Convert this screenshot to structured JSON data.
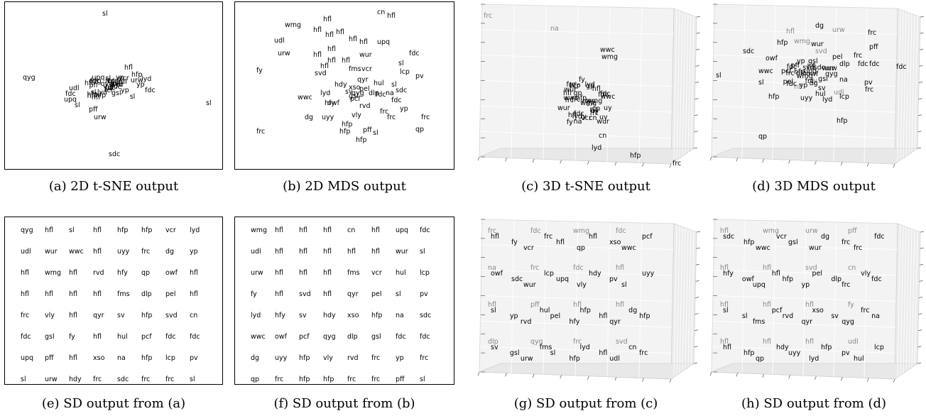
{
  "captions": {
    "a": "(a) 2D t-SNE output",
    "b": "(b) 2D MDS output",
    "c": "(c) 3D t-SNE output",
    "d": "(d) 3D MDS output",
    "e": "(e) SD output from (a)",
    "f": "(f) SD output from (b)",
    "g": "(g) SD output from (c)",
    "h": "(h) SD output from (d)"
  },
  "panel_a_labels": [
    "sl",
    "qyg",
    "hfl",
    "hfp",
    "vcr",
    "lyd",
    "yp",
    "fdc",
    "sl",
    "fdc",
    "upq",
    "sl",
    "pff",
    "urw",
    "sdc",
    "udl",
    "hfl",
    "fcr",
    "gsl"
  ],
  "panel_b_labels": [
    "cn",
    "hfl",
    "wmg",
    "hfl",
    "hfl",
    "hfl",
    "hfl",
    "udl",
    "hfl",
    "hfl",
    "upq",
    "fdc",
    "urw",
    "hfl",
    "hfl",
    "wur",
    "hfl",
    "hfl",
    "hfl",
    "sl",
    "fy",
    "svd",
    "fms",
    "vcr",
    "lcp",
    "hul",
    "qyr",
    "pv",
    "sl",
    "pel",
    "hdy",
    "xso",
    "wwc",
    "lyd",
    "hfy",
    "sv",
    "qyg",
    "dlp",
    "gsl",
    "fdc",
    "na",
    "sdc",
    "owf",
    "pcf",
    "fdc",
    "rvd",
    "yp",
    "dg",
    "uyy",
    "vly",
    "frc",
    "frc",
    "hfp",
    "frc",
    "pff",
    "sl",
    "qp",
    "frc",
    "hfp",
    "hfp"
  ],
  "panel_c_labels": [
    "frc",
    "na",
    "wwc",
    "wmg",
    "fy",
    "vcr",
    "gp",
    "hfl",
    "fdc",
    "wur",
    "uy",
    "cn",
    "lyd",
    "hfp",
    "frc"
  ],
  "panel_d_labels": [
    "dg",
    "urw",
    "hfl",
    "wmg",
    "frc",
    "hfp",
    "wur",
    "pff",
    "sdc",
    "svd",
    "owf",
    "pel",
    "frc",
    "yp",
    "gsl",
    "dlp",
    "fdc",
    "fdc",
    "fdc",
    "wwc",
    "pcf",
    "upq",
    "qyg",
    "na",
    "sl",
    "pv",
    "sl",
    "fy",
    "sv",
    "frc",
    "hfl",
    "hul",
    "udl",
    "hfp",
    "uyy",
    "lyd",
    "lcp",
    "hfp",
    "qp"
  ],
  "grid_e": [
    [
      "qyg",
      "hfl",
      "sl",
      "hfl",
      "hfp",
      "hfp",
      "vcr",
      "lyd"
    ],
    [
      "udl",
      "wur",
      "wwc",
      "hfl",
      "uyy",
      "frc",
      "dg",
      "yp"
    ],
    [
      "hfl",
      "wmg",
      "hfl",
      "rvd",
      "hfy",
      "qp",
      "owf",
      "hfl"
    ],
    [
      "hfl",
      "hfl",
      "hfl",
      "hfl",
      "fms",
      "dlp",
      "pel",
      "hfl"
    ],
    [
      "frc",
      "vly",
      "hfl",
      "qyr",
      "sv",
      "hfp",
      "svd",
      "cn"
    ],
    [
      "fdc",
      "gsl",
      "fy",
      "hfl",
      "hul",
      "pcf",
      "fdc",
      "fdc"
    ],
    [
      "upq",
      "pff",
      "hfl",
      "xso",
      "na",
      "hfp",
      "lcp",
      "pv"
    ],
    [
      "sl",
      "urw",
      "hdy",
      "frc",
      "sdc",
      "frc",
      "frc",
      "sl"
    ]
  ],
  "grid_f": [
    [
      "wmg",
      "hfl",
      "hfl",
      "hfl",
      "cn",
      "hfl",
      "upq",
      "fdc"
    ],
    [
      "udl",
      "hfl",
      "hfl",
      "hfl",
      "hfl",
      "hfl",
      "wur",
      "sl"
    ],
    [
      "urw",
      "hfl",
      "hfl",
      "hfl",
      "fms",
      "vcr",
      "hul",
      "lcp"
    ],
    [
      "fy",
      "hfl",
      "svd",
      "hfl",
      "qyr",
      "pel",
      "sl",
      "pv"
    ],
    [
      "lyd",
      "hfy",
      "sv",
      "hdy",
      "xso",
      "hfp",
      "na",
      "sdc"
    ],
    [
      "wwc",
      "owf",
      "pcf",
      "qyg",
      "dlp",
      "gsl",
      "fdc",
      "fdc"
    ],
    [
      "dg",
      "uyy",
      "hfp",
      "vly",
      "rvd",
      "frc",
      "yp",
      "frc"
    ],
    [
      "qp",
      "frc",
      "hfp",
      "hfp",
      "frc",
      "frc",
      "pff",
      "sl"
    ]
  ],
  "grid_g": {
    "back": [
      [
        "frc",
        "fdc",
        "wmg",
        "fdc"
      ],
      [
        "na",
        "frc",
        "fdc",
        "hfl"
      ],
      [
        "hfl",
        "pff",
        "hfl",
        "hfl"
      ],
      [
        "dlp",
        "qyg",
        "frc",
        "svd"
      ]
    ],
    "front": [
      [
        "hfl",
        "fy",
        "vcr",
        "frc",
        "hfl",
        "qp",
        "hfl",
        "xso",
        "wwc",
        "pcf"
      ],
      [
        "owf",
        "sdc",
        "wur",
        "lcp",
        "upq",
        "vly",
        "hdy",
        "pv",
        "sl",
        "uyy"
      ],
      [
        "sl",
        "yp",
        "rvd",
        "hul",
        "pel",
        "hfy",
        "hfp",
        "hfl",
        "qyr",
        "dg",
        "hfp"
      ],
      [
        "sv",
        "gsl",
        "urw",
        "fms",
        "sl",
        "hfp",
        "lyd",
        "hfl",
        "udl",
        "cn",
        "frc"
      ]
    ]
  },
  "grid_h": {
    "back": [
      [
        "hfl",
        "wmg",
        "urw",
        "pff"
      ],
      [
        "hfl",
        "hfl",
        "svd",
        "cn"
      ],
      [
        "hfl",
        "hfl",
        "hfl",
        "fy"
      ],
      [
        "hfl",
        "hfl",
        "hfl",
        "udl"
      ]
    ],
    "front": [
      [
        "sdc",
        "hfp",
        "wwc",
        "vcr",
        "gsl",
        "wur",
        "dg",
        "frc",
        "frc",
        "fdc"
      ],
      [
        "hfy",
        "owf",
        "upq",
        "hfl",
        "hfp",
        "yp",
        "pel",
        "dlp",
        "frc",
        "vly",
        "fdc"
      ],
      [
        "sl",
        "sl",
        "fms",
        "pcf",
        "rvd",
        "qyr",
        "xso",
        "sv",
        "qyg",
        "frc",
        "na"
      ],
      [
        "hfl",
        "hfp",
        "qp",
        "hdy",
        "uyy",
        "lyd",
        "hfp",
        "pv",
        "hul",
        "lcp"
      ]
    ]
  },
  "colors": {
    "ink": "#000000",
    "faded": "#888888",
    "pane": "#f2f2f2",
    "pane_line": "#dddddd"
  }
}
